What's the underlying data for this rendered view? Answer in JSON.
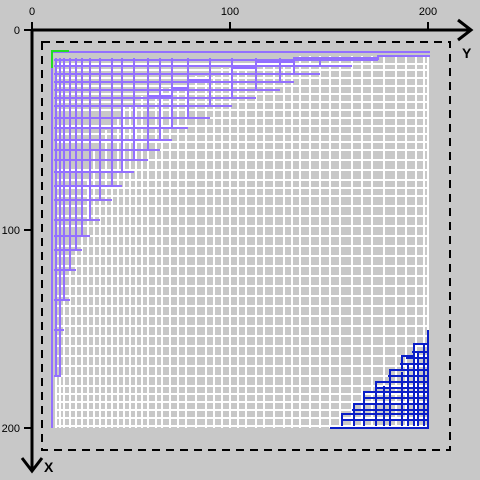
{
  "axes": {
    "y_axis_label": "Y",
    "x_axis_label": "X",
    "top_ticks": [
      "0",
      "100",
      "200"
    ],
    "left_ticks": [
      "0",
      "100",
      "200"
    ]
  },
  "colors": {
    "background": "#c8c8c8",
    "grid": "#ffffff",
    "purple_region": "#9370ff",
    "blue_region": "#0a1ec8",
    "green_marker": "#22dd22",
    "boundary": "#000000"
  }
}
